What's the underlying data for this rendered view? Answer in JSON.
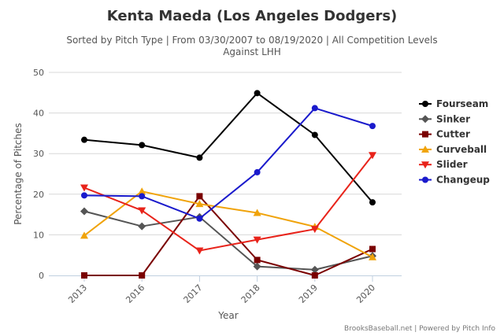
{
  "chart_data": {
    "type": "line",
    "title": "Kenta Maeda (Los Angeles Dodgers)",
    "subtitle_line1": "Sorted by Pitch Type | From 03/30/2007 to 08/19/2020 | All Competition Levels",
    "subtitle_line2": "Against LHH",
    "xlabel": "Year",
    "ylabel": "Percentage of Pitches",
    "categories": [
      "2013",
      "2016",
      "2017",
      "2018",
      "2019",
      "2020"
    ],
    "ylim": [
      0,
      50
    ],
    "yticks": [
      0,
      10,
      20,
      30,
      40,
      50
    ],
    "grid": true,
    "legend_position": "right",
    "series": [
      {
        "name": "Fourseam",
        "color": "#000000",
        "marker": "circle",
        "values": [
          33.4,
          32.1,
          29.0,
          44.9,
          34.6,
          18.0
        ]
      },
      {
        "name": "Sinker",
        "color": "#555555",
        "marker": "diamond",
        "values": [
          15.8,
          12.1,
          14.4,
          2.2,
          1.4,
          4.8
        ]
      },
      {
        "name": "Cutter",
        "color": "#7a0000",
        "marker": "square",
        "values": [
          0.0,
          0.0,
          19.5,
          3.8,
          0.0,
          6.5
        ]
      },
      {
        "name": "Curveball",
        "color": "#f0a30a",
        "marker": "triangle",
        "values": [
          9.8,
          20.7,
          17.6,
          15.4,
          12.0,
          4.5
        ]
      },
      {
        "name": "Slider",
        "color": "#e8231a",
        "marker": "triangle-down",
        "values": [
          21.6,
          16.0,
          6.1,
          8.8,
          11.4,
          29.6
        ]
      },
      {
        "name": "Changeup",
        "color": "#1a1acc",
        "marker": "circle",
        "values": [
          19.7,
          19.5,
          14.0,
          25.4,
          41.2,
          36.8
        ]
      }
    ]
  },
  "credits": "BrooksBaseball.net | Powered by Pitch Info"
}
